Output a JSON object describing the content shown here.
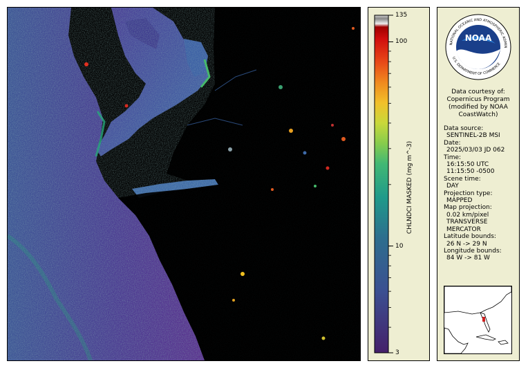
{
  "colorbar": {
    "title": "CHLNDCI MASKED (mg m^-3)",
    "ticks": [
      {
        "label": "135",
        "value": 135
      },
      {
        "label": "100",
        "value": 100
      },
      {
        "label": "10",
        "value": 10
      },
      {
        "label": "3",
        "value": 3
      }
    ],
    "range": [
      3,
      135
    ],
    "scale": "log"
  },
  "logo": {
    "center_text": "NOAA",
    "ring_text_top": "NATIONAL OCEANIC AND ATMOSPHERIC ADMINISTRATION",
    "ring_text_bottom": "U.S. DEPARTMENT OF COMMERCE"
  },
  "courtesy": [
    "Data courtesy of:",
    "Copernicus Program",
    "(modified by NOAA",
    "CoastWatch)"
  ],
  "metadata": [
    {
      "key": "Data source:",
      "values": [
        "SENTINEL-2B MSI"
      ]
    },
    {
      "key": "Date:",
      "values": [
        "2025/03/03 JD 062"
      ]
    },
    {
      "key": "Time:",
      "values": [
        "16:15:50 UTC",
        "11:15:50 -0500"
      ]
    },
    {
      "key": "Scene time:",
      "values": [
        "DAY"
      ]
    },
    {
      "key": "Projection type:",
      "values": [
        "MAPPED"
      ]
    },
    {
      "key": "Map projection:",
      "values": [
        "0.02 km/pixel",
        "TRANSVERSE",
        "MERCATOR"
      ]
    },
    {
      "key": "Latitude bounds:",
      "values": [
        "26 N -> 29 N"
      ]
    },
    {
      "key": "Longitude bounds:",
      "values": [
        "84 W -> 81 W"
      ]
    }
  ],
  "colors": {
    "panel_bg": "#eeeed2",
    "land": "#000000",
    "water_low": "#4a2f8a",
    "water_mid": "#3a5aa0",
    "water_high": "#2aa57a"
  }
}
